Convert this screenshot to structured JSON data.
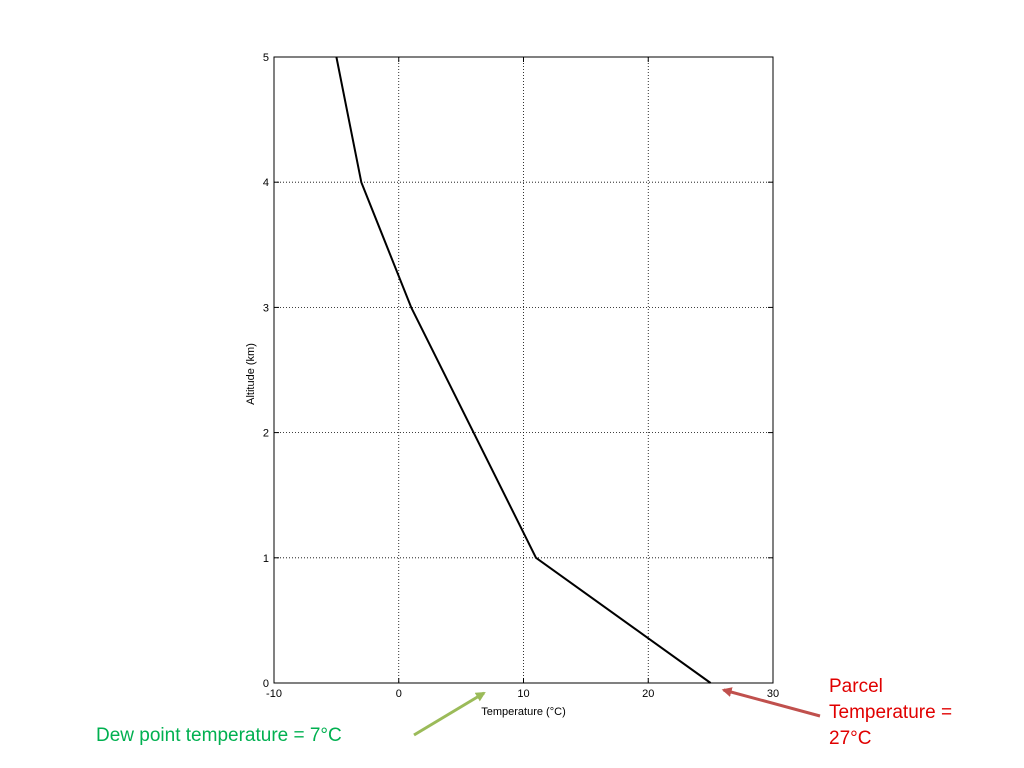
{
  "colors": {
    "line": "#000000",
    "grid": "#000000",
    "dew_annotation": "#00b050",
    "parcel_annotation": "#e00000",
    "dew_arrow": "#9bbb59",
    "parcel_arrow": "#c0504d"
  },
  "chart_data": {
    "type": "line",
    "title": "",
    "xlabel": "Temperature (°C)",
    "ylabel": "Altitude (km)",
    "xlim": [
      -10,
      30
    ],
    "ylim": [
      0,
      5
    ],
    "xticks": [
      -10,
      0,
      10,
      20,
      30
    ],
    "yticks": [
      0,
      1,
      2,
      3,
      4,
      5
    ],
    "xtick_labels": [
      "-10",
      "0",
      "10",
      "20",
      "30"
    ],
    "ytick_labels": [
      "0",
      "1",
      "2",
      "3",
      "4",
      "5"
    ],
    "grid": true,
    "grid_style": "dotted",
    "legend": "none",
    "series": [
      {
        "x": [
          25,
          11,
          1,
          -3,
          -5
        ],
        "y": [
          0,
          1,
          3,
          4,
          5
        ]
      }
    ]
  },
  "annotations": {
    "dew_point": {
      "text": "Dew point temperature = 7°C",
      "arrow_target": {
        "x": 7,
        "y": 0
      },
      "arrow_color": "#9bbb59"
    },
    "parcel": {
      "lines": [
        "Parcel",
        "Temperature =",
        "27°C"
      ],
      "arrow_target": {
        "x": 27,
        "y": 0
      },
      "arrow_color": "#c0504d"
    }
  }
}
